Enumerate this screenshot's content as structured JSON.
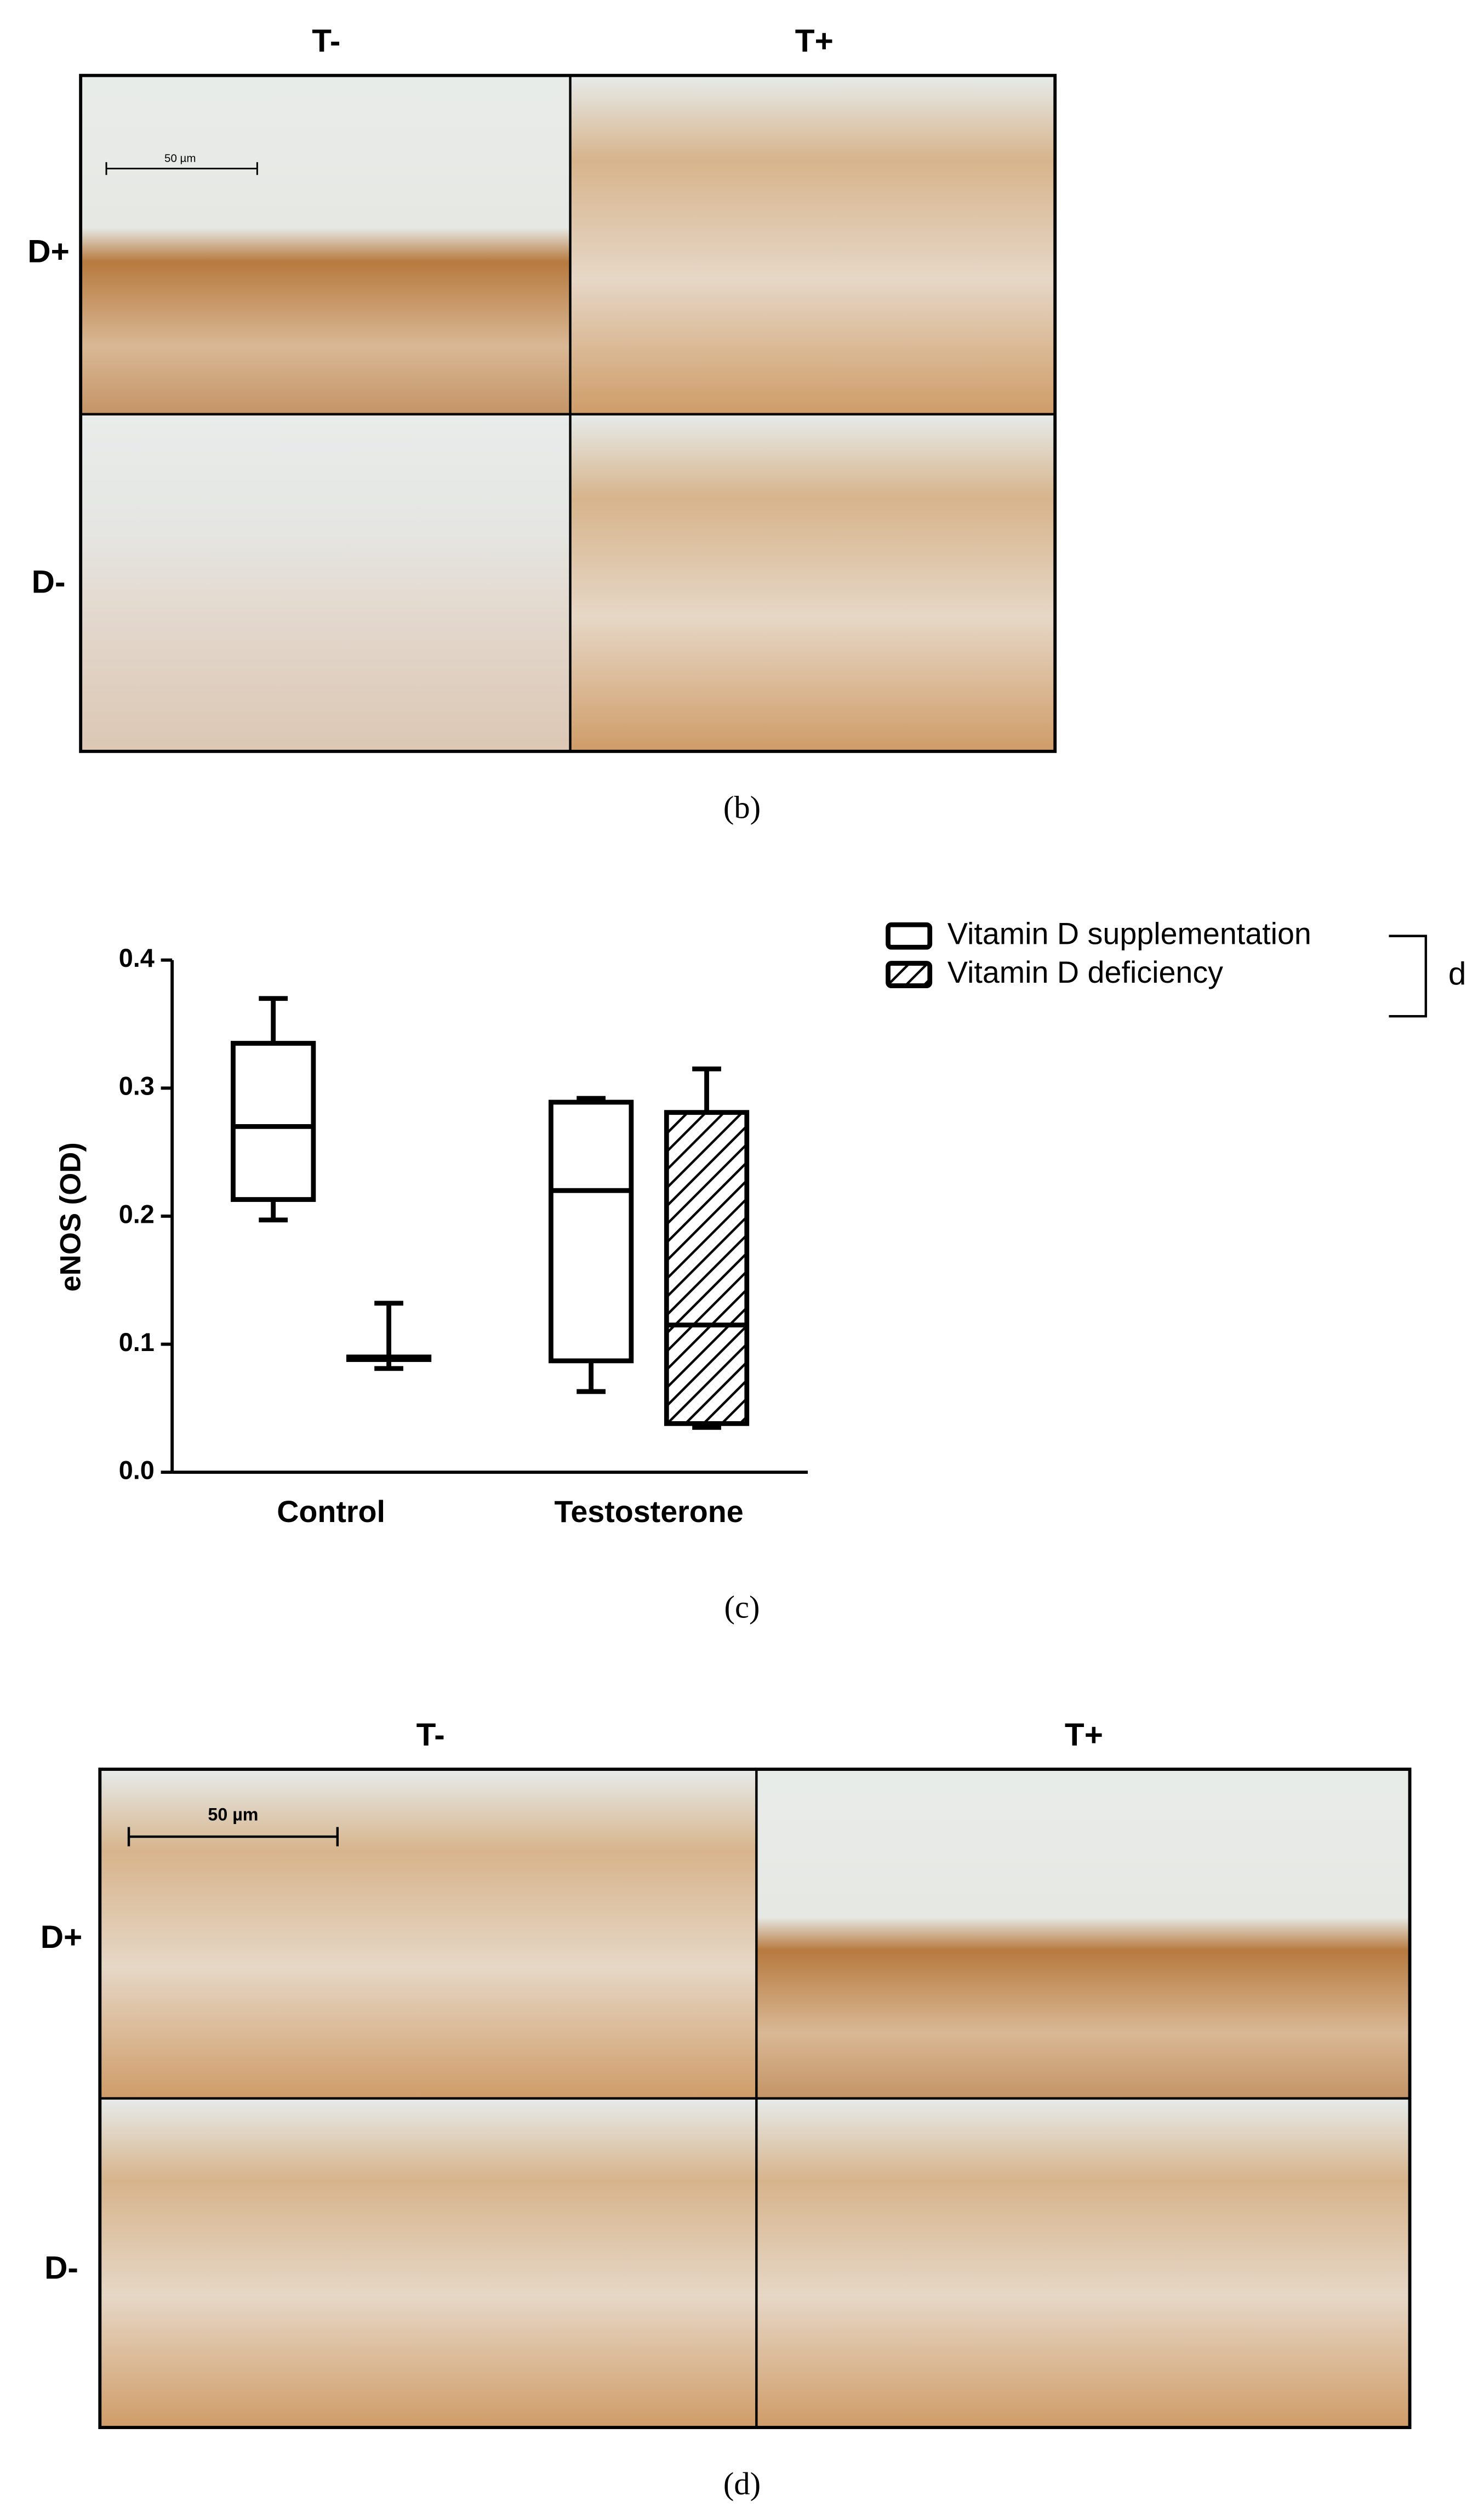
{
  "panel_b": {
    "columns": [
      "T-",
      "T+"
    ],
    "rows": [
      "D+",
      "D-"
    ],
    "scale_bar": "50 µm",
    "caption": "(b)"
  },
  "chart_data": {
    "type": "box",
    "ylabel": "eNOS (OD)",
    "categories": [
      "Control",
      "Testosterone"
    ],
    "ylim": [
      0,
      0.4
    ],
    "yticks": [
      {
        "value": 0,
        "label": "0.0"
      },
      0.1,
      0.2,
      0.3,
      0.4
    ],
    "series": [
      {
        "name": "Vitamin D supplementation",
        "color": "#000000",
        "hatch": false,
        "boxes": [
          {
            "min": 0.197,
            "q1": 0.213,
            "median": 0.27,
            "q3": 0.335,
            "max": 0.37
          },
          {
            "min": 0.063,
            "q1": 0.087,
            "median": 0.22,
            "q3": 0.289,
            "max": 0.292
          }
        ]
      },
      {
        "name": "Vitamin D deficiency",
        "color": "#000000",
        "hatch": true,
        "boxes": [
          {
            "min": 0.081,
            "q1": 0.088,
            "median": 0.089,
            "q3": 0.09,
            "max": 0.132
          },
          {
            "min": 0.035,
            "q1": 0.038,
            "median": 0.115,
            "q3": 0.281,
            "max": 0.315
          }
        ]
      }
    ],
    "annotation": "d",
    "caption": "(c)"
  },
  "panel_d": {
    "columns": [
      "T-",
      "T+"
    ],
    "rows": [
      "D+",
      "D-"
    ],
    "scale_bar": "50 µm",
    "caption": "(d)"
  }
}
